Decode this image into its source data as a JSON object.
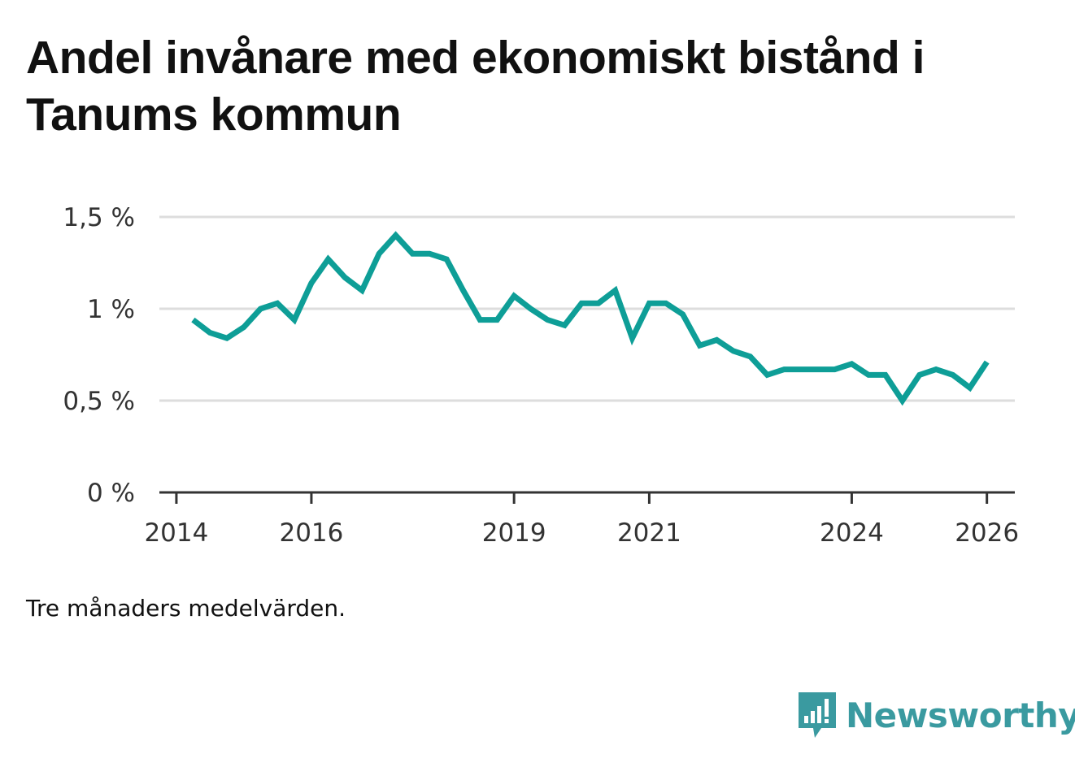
{
  "title": "Andel invånare med ekonomiskt bistånd i Tanums kommun",
  "note": "Tre månaders medelvärden.",
  "brand": {
    "name": "Newsworthy",
    "icon": "newsworthy-logo-icon"
  },
  "colors": {
    "line": "#0e9e97",
    "grid": "#dddddd",
    "axis": "#333333",
    "brand": "#3a9aa0"
  },
  "chart_data": {
    "type": "line",
    "title": "Andel invånare med ekonomiskt bistånd i Tanums kommun",
    "xlabel": "",
    "ylabel": "",
    "ylim": [
      0,
      1.5
    ],
    "xlim": [
      "2013-10-01",
      "2026-06-01"
    ],
    "y_ticks": [
      {
        "value": 0,
        "label": "0 %"
      },
      {
        "value": 0.5,
        "label": "0,5 %"
      },
      {
        "value": 1,
        "label": "1 %"
      },
      {
        "value": 1.5,
        "label": "1,5 %"
      }
    ],
    "x_ticks": [
      {
        "value": "2014-01-01",
        "label": "2014"
      },
      {
        "value": "2016-01-01",
        "label": "2016"
      },
      {
        "value": "2019-01-01",
        "label": "2019"
      },
      {
        "value": "2021-01-01",
        "label": "2021"
      },
      {
        "value": "2024-01-01",
        "label": "2024"
      },
      {
        "value": "2026-01-01",
        "label": "2026"
      }
    ],
    "grid": true,
    "series": [
      {
        "x": [
          "2014-04-01",
          "2014-07-01",
          "2014-10-01",
          "2015-01-01",
          "2015-04-01",
          "2015-07-01",
          "2015-10-01",
          "2016-01-01",
          "2016-04-01",
          "2016-07-01",
          "2016-10-01",
          "2017-01-01",
          "2017-04-01",
          "2017-07-01",
          "2017-10-01",
          "2018-01-01",
          "2018-04-01",
          "2018-07-01",
          "2018-10-01",
          "2019-01-01",
          "2019-04-01",
          "2019-07-01",
          "2019-10-01",
          "2020-01-01",
          "2020-04-01",
          "2020-07-01",
          "2020-10-01",
          "2021-01-01",
          "2021-04-01",
          "2021-07-01",
          "2021-10-01",
          "2022-01-01",
          "2022-04-01",
          "2022-07-01",
          "2022-10-01",
          "2023-01-01",
          "2023-04-01",
          "2023-07-01",
          "2023-10-01",
          "2024-01-01",
          "2024-04-01",
          "2024-07-01",
          "2024-10-01",
          "2025-01-01",
          "2025-04-01",
          "2025-07-01",
          "2025-10-01",
          "2026-01-01"
        ],
        "values": [
          0.94,
          0.87,
          0.84,
          0.9,
          1.0,
          1.03,
          0.94,
          1.14,
          1.27,
          1.17,
          1.1,
          1.3,
          1.4,
          1.3,
          1.3,
          1.27,
          1.1,
          0.94,
          0.94,
          1.07,
          1.0,
          0.94,
          0.91,
          1.03,
          1.03,
          1.1,
          0.84,
          1.03,
          1.03,
          0.97,
          0.8,
          0.83,
          0.77,
          0.74,
          0.64,
          0.67,
          0.67,
          0.67,
          0.67,
          0.7,
          0.64,
          0.64,
          0.5,
          0.64,
          0.67,
          0.64,
          0.57,
          0.71
        ]
      }
    ]
  }
}
